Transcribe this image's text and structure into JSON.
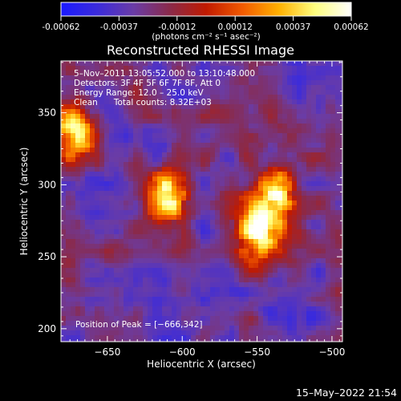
{
  "colorbar": {
    "tick_labels": [
      "-0.00062",
      "-0.00037",
      "-0.00012",
      "0.00012",
      "0.00037",
      "0.00062"
    ],
    "units_label": "(photons cm⁻² s⁻¹ asec⁻²)",
    "colors": [
      "#1a1aff",
      "#3b2bdb",
      "#6a3ca6",
      "#8a2a4a",
      "#c01a00",
      "#f25a00",
      "#ffb000",
      "#ffff80",
      "#ffffff"
    ]
  },
  "image": {
    "title": "Reconstructed RHESSI Image",
    "info_lines": [
      "5–Nov–2011 13:05:52.000 to 13:10:48.000",
      "Detectors: 3F 4F 5F 6F 7F 8F, Att 0",
      "Energy Range: 12.0 – 25.0 keV",
      "Clean      Total counts: 8.32E+03"
    ],
    "peak_text": "Position of Peak = [−666,342]",
    "xlabel": "Heliocentric X (arcsec)",
    "ylabel": "Heliocentric Y (arcsec)",
    "x_ticks": [
      "−650",
      "−600",
      "−550",
      "−500"
    ],
    "y_ticks": [
      "200",
      "250",
      "300",
      "350"
    ],
    "x_tick_values": [
      -650,
      -600,
      -550,
      -500
    ],
    "y_tick_values": [
      200,
      250,
      300,
      350
    ],
    "xlim": [
      -681,
      -493
    ],
    "ylim": [
      191,
      386
    ],
    "sources": [
      {
        "x": -672,
        "y": 338,
        "peak": 1.0,
        "sx": 9,
        "sy": 14
      },
      {
        "x": -610,
        "y": 292,
        "peak": 0.95,
        "sx": 9,
        "sy": 12
      },
      {
        "x": -548,
        "y": 270,
        "peak": 0.9,
        "sx": 12,
        "sy": 18
      },
      {
        "x": -535,
        "y": 298,
        "peak": 0.65,
        "sx": 8,
        "sy": 10
      }
    ]
  },
  "footer": {
    "timestamp": "15–May–2022 21:54"
  }
}
